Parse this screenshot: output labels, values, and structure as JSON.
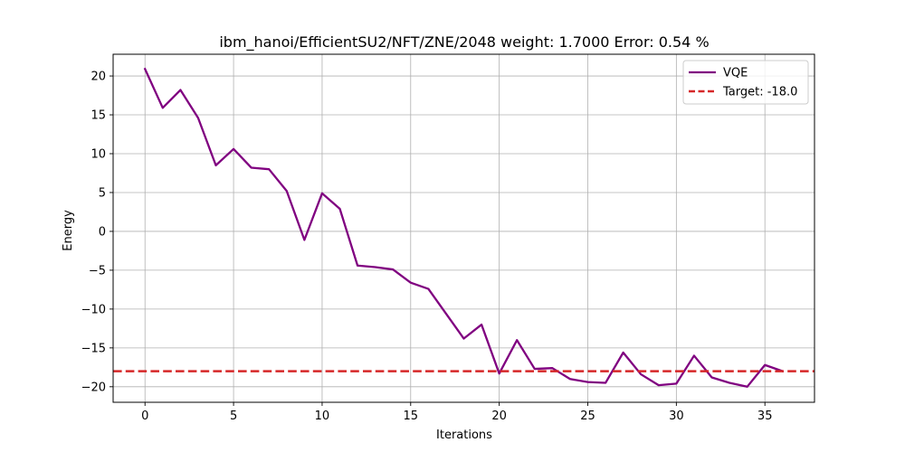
{
  "chart_data": {
    "type": "line",
    "title": "ibm_hanoi/EfficientSU2/NFT/ZNE/2048 weight: 1.7000 Error: 0.54 %",
    "xlabel": "Iterations",
    "ylabel": "Energy",
    "xlim": [
      -1.8,
      37.8
    ],
    "ylim": [
      -22,
      22.8
    ],
    "xticks": [
      0,
      5,
      10,
      15,
      20,
      25,
      30,
      35
    ],
    "yticks": [
      20,
      15,
      10,
      5,
      0,
      -5,
      -10,
      -15,
      -20
    ],
    "xtick_labels": [
      "0",
      "5",
      "10",
      "15",
      "20",
      "25",
      "30",
      "35"
    ],
    "ytick_labels": [
      "20",
      "15",
      "10",
      "5",
      "0",
      "−5",
      "−10",
      "−15",
      "−20"
    ],
    "grid": true,
    "legend_position": "top-right",
    "series": [
      {
        "name": "VQE",
        "color": "#800080",
        "style": "solid",
        "x": [
          0,
          1,
          2,
          3,
          4,
          5,
          6,
          7,
          8,
          9,
          10,
          11,
          12,
          13,
          14,
          15,
          16,
          17,
          18,
          19,
          20,
          21,
          22,
          23,
          24,
          25,
          26,
          27,
          28,
          29,
          30,
          31,
          32,
          33,
          34,
          35,
          36
        ],
        "y": [
          20.9,
          15.9,
          18.2,
          14.6,
          8.5,
          10.6,
          8.2,
          8.0,
          5.2,
          -1.1,
          4.9,
          2.9,
          -4.4,
          -4.6,
          -4.9,
          -6.6,
          -7.4,
          -10.6,
          -13.8,
          -12.0,
          -18.3,
          -14.0,
          -17.7,
          -17.6,
          -19.0,
          -19.4,
          -19.5,
          -15.6,
          -18.4,
          -19.8,
          -19.6,
          -16.0,
          -18.8,
          -19.5,
          -20.0,
          -17.2,
          -18.0
        ]
      },
      {
        "name": "Target: -18.0",
        "color": "#d62728",
        "style": "dashed",
        "hline": -18.0
      }
    ]
  }
}
